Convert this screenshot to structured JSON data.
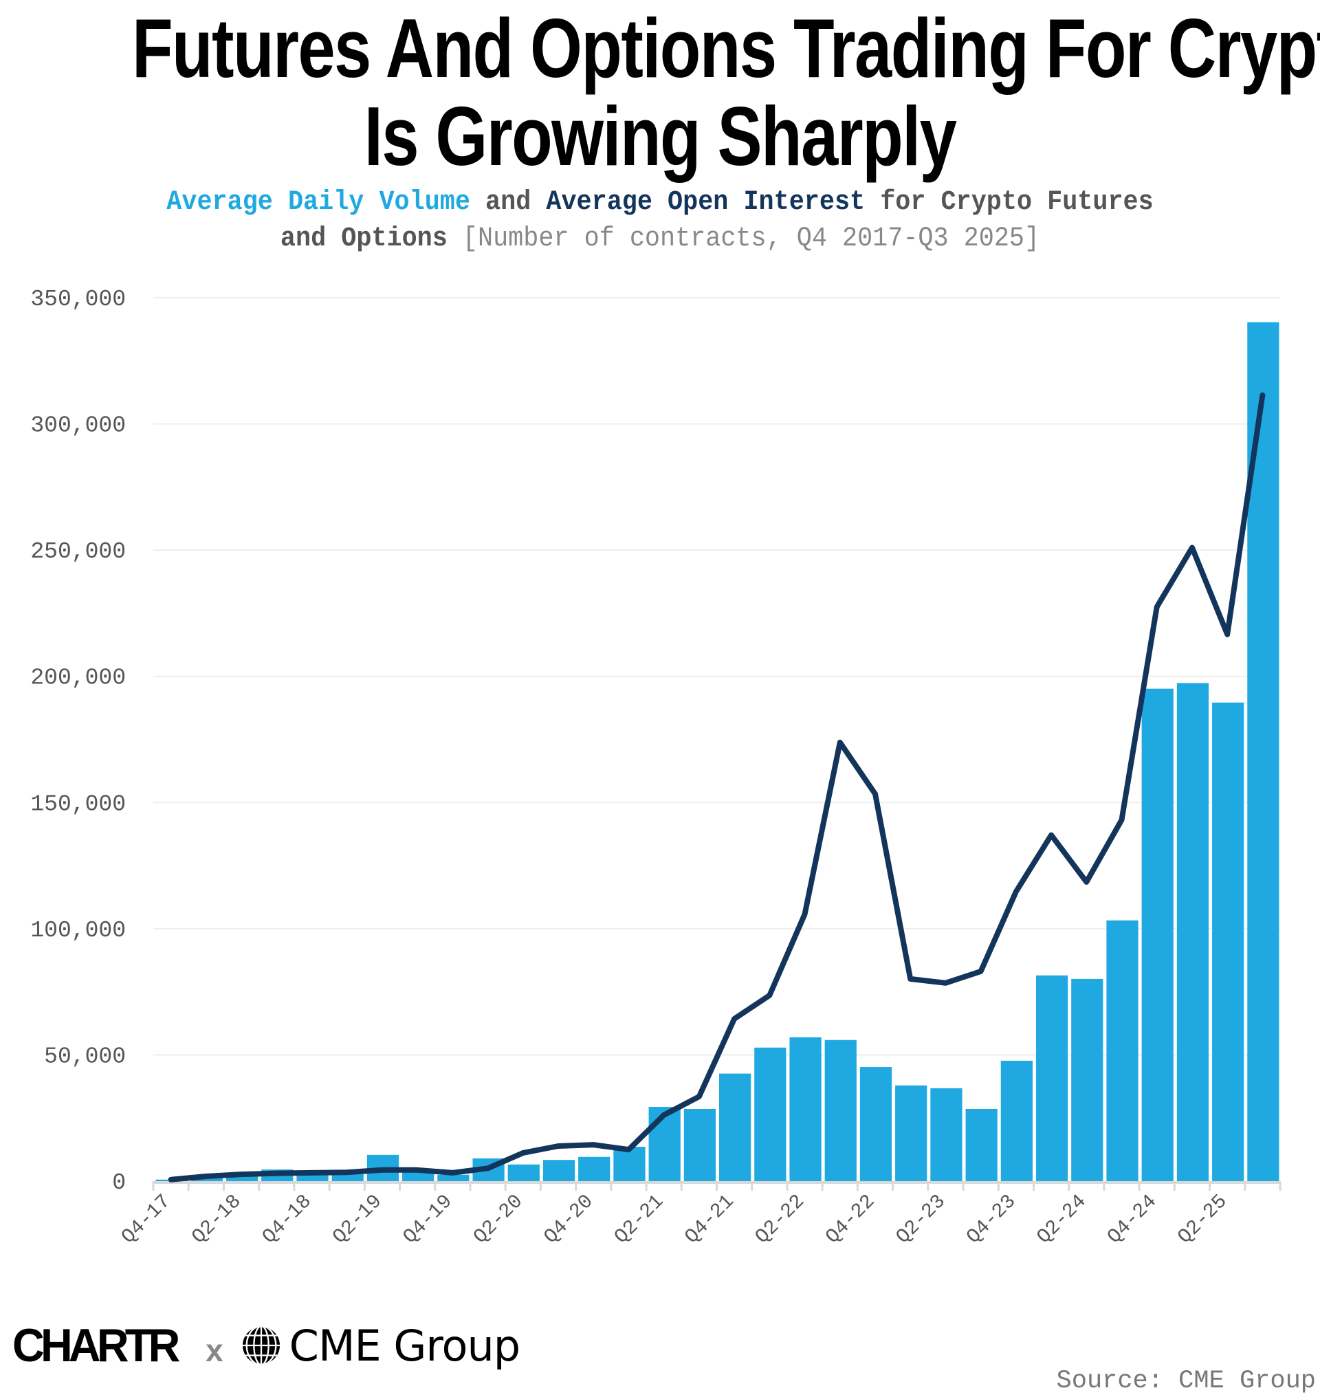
{
  "title": {
    "line1": "Futures And Options Trading For Crypto",
    "line2": "Is Growing Sharply"
  },
  "subtitle": {
    "adv_label": "Average Daily Volume",
    "and1": " and ",
    "aoi_label": "Average Open Interest",
    "rest1": " for Crypto Futures",
    "rest2": "and Options",
    "unit": " [Number of contracts, Q4 2017-Q3 2025]"
  },
  "colors": {
    "bars": "#20A9E0",
    "line": "#13355C",
    "gridline": "#EEEEEE",
    "axis": "#D9D9D9",
    "tick_text": "#555555"
  },
  "footer": {
    "logo_left": "CHARTR",
    "logo_sep": "x",
    "logo_right": "CME Group",
    "globe_icon": "globe-icon",
    "source": "Source: CME Group"
  },
  "chart_data": {
    "type": "bar",
    "title": "Futures And Options Trading For Crypto Is Growing Sharply",
    "subtitle": "Average Daily Volume and Average Open Interest for Crypto Futures and Options [Number of contracts, Q4 2017-Q3 2025]",
    "xlabel": "",
    "ylabel": "",
    "ylim": [
      0,
      350000
    ],
    "yticks": [
      0,
      50000,
      100000,
      150000,
      200000,
      250000,
      300000,
      350000
    ],
    "ytick_labels": [
      "0",
      "50,000",
      "100,000",
      "150,000",
      "200,000",
      "250,000",
      "300,000",
      "350,000"
    ],
    "grid": true,
    "legend": "none (encoded by subtitle colors)",
    "categories": [
      "Q4-17",
      "Q1-18",
      "Q2-18",
      "Q3-18",
      "Q4-18",
      "Q1-19",
      "Q2-19",
      "Q3-19",
      "Q4-19",
      "Q1-20",
      "Q2-20",
      "Q3-20",
      "Q4-20",
      "Q1-21",
      "Q2-21",
      "Q3-21",
      "Q4-21",
      "Q1-22",
      "Q2-22",
      "Q3-22",
      "Q4-22",
      "Q1-23",
      "Q2-23",
      "Q3-23",
      "Q4-23",
      "Q1-24",
      "Q2-24",
      "Q3-24",
      "Q4-24",
      "Q1-25",
      "Q2-25",
      "Q3-25"
    ],
    "xtick_labels": [
      "Q4-17",
      "Q2-18",
      "Q4-18",
      "Q2-19",
      "Q4-19",
      "Q2-20",
      "Q4-20",
      "Q2-21",
      "Q4-21",
      "Q2-22",
      "Q4-22",
      "Q2-23",
      "Q4-23",
      "Q2-24",
      "Q4-24",
      "Q2-25"
    ],
    "series": [
      {
        "name": "Average Daily Volume",
        "type": "bar",
        "values": [
          600,
          1500,
          3300,
          4600,
          2500,
          2800,
          10400,
          4000,
          2500,
          9000,
          6600,
          8400,
          9600,
          13600,
          29400,
          28600,
          42600,
          52900,
          57000,
          55900,
          45200,
          37900,
          36800,
          28600,
          47700,
          81500,
          80100,
          103300,
          195100,
          197300,
          189600,
          340300
        ]
      },
      {
        "name": "Average Open Interest",
        "type": "line",
        "values": [
          600,
          1900,
          2700,
          3100,
          3300,
          3500,
          4400,
          4400,
          3300,
          5100,
          11200,
          13900,
          14400,
          12500,
          26200,
          33500,
          64300,
          73600,
          105700,
          173800,
          153400,
          80100,
          78500,
          83100,
          114700,
          137100,
          118500,
          143100,
          227500,
          251000,
          216600,
          311400
        ]
      }
    ]
  }
}
